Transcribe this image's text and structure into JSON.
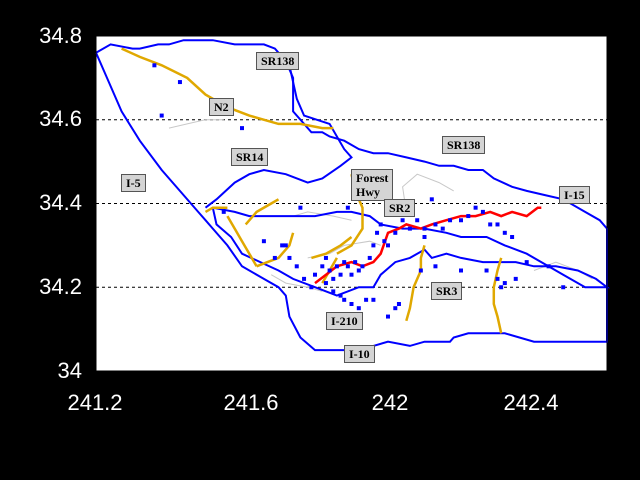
{
  "chart_data": {
    "type": "scatter",
    "xlim": [
      241.2,
      242.6
    ],
    "ylim": [
      34.0,
      34.8
    ],
    "x_ticks": [
      "241.2",
      "241.6",
      "242",
      "242.4"
    ],
    "y_ticks": [
      "34",
      "34.2",
      "34.4",
      "34.6",
      "34.8"
    ],
    "grid": "horizontal dashed at 34.2, 34.4, 34.6",
    "colors": {
      "background": "#ffffff",
      "boundary": "#0000ff",
      "highway_orange": "#e0a800",
      "highway_red": "#ff0000",
      "points": "#0000ff",
      "minor_roads": "#c8c8c8",
      "frame_bg": "#000000"
    },
    "route_labels": [
      {
        "text": "SR138",
        "x": 241.65,
        "y": 34.74
      },
      {
        "text": "N2",
        "x": 241.52,
        "y": 34.63
      },
      {
        "text": "SR138",
        "x": 242.16,
        "y": 34.54
      },
      {
        "text": "SR14",
        "x": 241.58,
        "y": 34.51
      },
      {
        "text": "Forest\nHwy",
        "x": 241.91,
        "y": 34.46
      },
      {
        "text": "I-5",
        "x": 241.28,
        "y": 34.45
      },
      {
        "text": "I-15",
        "x": 242.48,
        "y": 34.42
      },
      {
        "text": "SR2",
        "x": 242.0,
        "y": 34.39
      },
      {
        "text": "SR3",
        "x": 242.13,
        "y": 34.19
      },
      {
        "text": "I-210",
        "x": 241.84,
        "y": 34.12
      },
      {
        "text": "I-10",
        "x": 241.89,
        "y": 34.04
      }
    ],
    "boundary": [
      [
        241.2,
        34.76
      ],
      [
        241.24,
        34.78
      ],
      [
        241.3,
        34.77
      ],
      [
        241.32,
        34.77
      ],
      [
        241.37,
        34.78
      ],
      [
        241.4,
        34.78
      ],
      [
        241.44,
        34.79
      ],
      [
        241.52,
        34.79
      ],
      [
        241.58,
        34.78
      ],
      [
        241.63,
        34.78
      ],
      [
        241.66,
        34.78
      ],
      [
        241.69,
        34.77
      ],
      [
        241.72,
        34.74
      ],
      [
        241.74,
        34.7
      ],
      [
        241.74,
        34.62
      ],
      [
        241.77,
        34.59
      ],
      [
        241.79,
        34.57
      ],
      [
        241.82,
        34.57
      ],
      [
        241.84,
        34.56
      ],
      [
        241.88,
        34.55
      ],
      [
        241.92,
        34.53
      ],
      [
        241.96,
        34.52
      ],
      [
        242.0,
        34.52
      ],
      [
        242.05,
        34.51
      ],
      [
        242.1,
        34.5
      ],
      [
        242.14,
        34.49
      ],
      [
        242.18,
        34.49
      ],
      [
        242.22,
        34.48
      ],
      [
        242.26,
        34.48
      ],
      [
        242.29,
        34.46
      ],
      [
        242.34,
        34.44
      ],
      [
        242.38,
        34.43
      ],
      [
        242.43,
        34.42
      ],
      [
        242.48,
        34.41
      ],
      [
        242.54,
        34.38
      ],
      [
        242.58,
        34.36
      ],
      [
        242.6,
        34.34
      ],
      [
        242.6,
        34.07
      ],
      [
        242.55,
        34.07
      ],
      [
        242.5,
        34.07
      ],
      [
        242.46,
        34.07
      ],
      [
        242.4,
        34.07
      ],
      [
        242.36,
        34.08
      ],
      [
        242.32,
        34.09
      ],
      [
        242.27,
        34.09
      ],
      [
        242.22,
        34.09
      ],
      [
        242.18,
        34.08
      ],
      [
        242.17,
        34.07
      ],
      [
        242.1,
        34.07
      ],
      [
        242.06,
        34.06
      ],
      [
        242.0,
        34.07
      ],
      [
        241.96,
        34.06
      ],
      [
        241.92,
        34.05
      ],
      [
        241.88,
        34.05
      ],
      [
        241.84,
        34.05
      ],
      [
        241.8,
        34.05
      ],
      [
        241.76,
        34.08
      ],
      [
        241.73,
        34.13
      ],
      [
        241.72,
        34.18
      ],
      [
        241.7,
        34.2
      ],
      [
        241.66,
        34.22
      ],
      [
        241.6,
        34.25
      ],
      [
        241.56,
        34.3
      ],
      [
        241.52,
        34.34
      ],
      [
        241.5,
        34.36
      ],
      [
        241.48,
        34.38
      ],
      [
        241.44,
        34.42
      ],
      [
        241.38,
        34.48
      ],
      [
        241.32,
        34.55
      ],
      [
        241.27,
        34.62
      ],
      [
        241.23,
        34.7
      ],
      [
        241.2,
        34.76
      ]
    ],
    "inner_line": [
      [
        241.73,
        34.73
      ],
      [
        241.75,
        34.65
      ],
      [
        241.77,
        34.61
      ],
      [
        241.84,
        34.59
      ],
      [
        241.88,
        34.53
      ],
      [
        241.9,
        34.51
      ],
      [
        241.87,
        34.49
      ],
      [
        241.82,
        34.46
      ],
      [
        241.78,
        34.45
      ],
      [
        241.72,
        34.47
      ],
      [
        241.66,
        34.48
      ],
      [
        241.62,
        34.47
      ],
      [
        241.58,
        34.45
      ],
      [
        241.53,
        34.41
      ],
      [
        241.5,
        34.39
      ]
    ],
    "inner_basin": [
      [
        241.52,
        34.39
      ],
      [
        241.58,
        34.38
      ],
      [
        241.62,
        34.37
      ],
      [
        241.68,
        34.37
      ],
      [
        241.74,
        34.37
      ],
      [
        241.8,
        34.37
      ],
      [
        241.86,
        34.38
      ],
      [
        241.9,
        34.38
      ],
      [
        241.95,
        34.37
      ],
      [
        241.98,
        34.35
      ],
      [
        242.04,
        34.34
      ],
      [
        242.1,
        34.34
      ],
      [
        242.16,
        34.33
      ],
      [
        242.2,
        34.32
      ],
      [
        242.27,
        34.32
      ],
      [
        242.32,
        34.3
      ],
      [
        242.38,
        34.28
      ],
      [
        242.42,
        34.26
      ],
      [
        242.48,
        34.23
      ],
      [
        242.54,
        34.2
      ],
      [
        242.58,
        34.2
      ],
      [
        242.6,
        34.2
      ],
      [
        242.57,
        34.22
      ],
      [
        242.52,
        34.24
      ],
      [
        242.46,
        34.25
      ],
      [
        242.4,
        34.25
      ],
      [
        242.35,
        34.26
      ],
      [
        242.3,
        34.26
      ],
      [
        242.26,
        34.26
      ],
      [
        242.2,
        34.27
      ],
      [
        242.16,
        34.28
      ],
      [
        242.12,
        34.27
      ],
      [
        242.1,
        34.29
      ],
      [
        242.06,
        34.27
      ],
      [
        242.02,
        34.26
      ],
      [
        241.98,
        34.23
      ],
      [
        241.96,
        34.2
      ],
      [
        241.92,
        34.2
      ],
      [
        241.86,
        34.18
      ],
      [
        241.8,
        34.2
      ],
      [
        241.74,
        34.22
      ],
      [
        241.7,
        34.24
      ],
      [
        241.65,
        34.26
      ],
      [
        241.6,
        34.28
      ],
      [
        241.57,
        34.32
      ],
      [
        241.53,
        34.35
      ],
      [
        241.52,
        34.39
      ]
    ],
    "highways_orange": [
      [
        [
          241.27,
          34.77
        ],
        [
          241.32,
          34.75
        ],
        [
          241.38,
          34.73
        ],
        [
          241.45,
          34.7
        ],
        [
          241.5,
          34.66
        ],
        [
          241.56,
          34.63
        ],
        [
          241.62,
          34.61
        ],
        [
          241.7,
          34.59
        ],
        [
          241.76,
          34.59
        ],
        [
          241.82,
          34.58
        ],
        [
          241.85,
          34.58
        ]
      ],
      [
        [
          241.9,
          34.47
        ],
        [
          241.91,
          34.43
        ],
        [
          241.93,
          34.39
        ],
        [
          241.93,
          34.34
        ],
        [
          241.9,
          34.3
        ],
        [
          241.86,
          34.28
        ]
      ],
      [
        [
          241.56,
          34.37
        ],
        [
          241.58,
          34.34
        ],
        [
          241.6,
          34.31
        ],
        [
          241.62,
          34.28
        ],
        [
          241.64,
          34.25
        ]
      ],
      [
        [
          241.61,
          34.35
        ],
        [
          241.64,
          34.38
        ],
        [
          241.68,
          34.4
        ],
        [
          241.7,
          34.41
        ]
      ],
      [
        [
          241.64,
          34.25
        ],
        [
          241.67,
          34.26
        ],
        [
          241.7,
          34.27
        ],
        [
          241.73,
          34.3
        ],
        [
          241.74,
          34.33
        ]
      ],
      [
        [
          241.79,
          34.27
        ],
        [
          241.83,
          34.28
        ],
        [
          241.87,
          34.3
        ],
        [
          241.9,
          34.32
        ]
      ],
      [
        [
          242.1,
          34.3
        ],
        [
          242.09,
          34.27
        ],
        [
          242.09,
          34.24
        ],
        [
          242.07,
          34.2
        ],
        [
          242.06,
          34.15
        ],
        [
          242.05,
          34.12
        ]
      ],
      [
        [
          242.31,
          34.27
        ],
        [
          242.3,
          34.24
        ],
        [
          242.29,
          34.2
        ],
        [
          242.29,
          34.16
        ],
        [
          242.3,
          34.13
        ],
        [
          242.31,
          34.09
        ]
      ],
      [
        [
          241.82,
          34.21
        ],
        [
          241.84,
          34.24
        ],
        [
          241.86,
          34.27
        ]
      ],
      [
        [
          241.5,
          34.38
        ],
        [
          241.52,
          34.39
        ],
        [
          241.54,
          34.39
        ],
        [
          241.56,
          34.39
        ]
      ]
    ],
    "highway_red": [
      [
        241.8,
        34.21
      ],
      [
        241.83,
        34.23
      ],
      [
        241.86,
        34.25
      ],
      [
        241.9,
        34.26
      ],
      [
        241.93,
        34.25
      ],
      [
        241.96,
        34.26
      ],
      [
        241.98,
        34.28
      ],
      [
        242.0,
        34.33
      ],
      [
        242.03,
        34.34
      ],
      [
        242.05,
        34.35
      ],
      [
        242.09,
        34.34
      ],
      [
        242.12,
        34.35
      ],
      [
        242.16,
        34.36
      ],
      [
        242.2,
        34.37
      ],
      [
        242.24,
        34.37
      ],
      [
        242.28,
        34.38
      ],
      [
        242.31,
        34.37
      ],
      [
        242.34,
        34.38
      ],
      [
        242.38,
        34.37
      ],
      [
        242.41,
        34.39
      ],
      [
        242.42,
        34.39
      ]
    ],
    "minor_roads": [
      [
        [
          241.4,
          34.58
        ],
        [
          241.45,
          34.59
        ],
        [
          241.5,
          34.6
        ],
        [
          241.55,
          34.6
        ]
      ],
      [
        [
          241.7,
          34.37
        ],
        [
          241.74,
          34.37
        ],
        [
          241.78,
          34.38
        ],
        [
          241.85,
          34.37
        ],
        [
          241.9,
          34.36
        ]
      ],
      [
        [
          241.78,
          34.27
        ],
        [
          241.84,
          34.28
        ],
        [
          241.88,
          34.3
        ],
        [
          241.95,
          34.31
        ],
        [
          241.98,
          34.3
        ]
      ],
      [
        [
          242.05,
          34.38
        ],
        [
          242.04,
          34.44
        ],
        [
          242.08,
          34.47
        ],
        [
          242.14,
          34.45
        ],
        [
          242.18,
          34.43
        ]
      ],
      [
        [
          242.4,
          34.24
        ],
        [
          242.46,
          34.26
        ],
        [
          242.52,
          34.24
        ],
        [
          242.56,
          34.22
        ]
      ],
      [
        [
          241.68,
          34.23
        ],
        [
          241.72,
          34.21
        ],
        [
          241.78,
          34.2
        ],
        [
          241.82,
          34.19
        ]
      ]
    ],
    "points": [
      [
        241.36,
        34.73
      ],
      [
        241.38,
        34.61
      ],
      [
        241.43,
        34.69
      ],
      [
        241.6,
        34.58
      ],
      [
        241.55,
        34.38
      ],
      [
        241.76,
        34.39
      ],
      [
        241.89,
        34.39
      ],
      [
        241.66,
        34.31
      ],
      [
        241.69,
        34.27
      ],
      [
        241.71,
        34.3
      ],
      [
        241.72,
        34.3
      ],
      [
        241.73,
        34.27
      ],
      [
        241.75,
        34.25
      ],
      [
        241.77,
        34.22
      ],
      [
        241.79,
        34.2
      ],
      [
        241.8,
        34.23
      ],
      [
        241.82,
        34.25
      ],
      [
        241.83,
        34.27
      ],
      [
        241.84,
        34.24
      ],
      [
        241.85,
        34.22
      ],
      [
        241.86,
        34.25
      ],
      [
        241.87,
        34.23
      ],
      [
        241.88,
        34.26
      ],
      [
        241.89,
        34.25
      ],
      [
        241.9,
        34.23
      ],
      [
        241.91,
        34.26
      ],
      [
        241.92,
        34.24
      ],
      [
        241.93,
        34.25
      ],
      [
        241.95,
        34.27
      ],
      [
        241.96,
        34.3
      ],
      [
        241.97,
        34.33
      ],
      [
        241.98,
        34.35
      ],
      [
        241.99,
        34.31
      ],
      [
        242.0,
        34.3
      ],
      [
        242.02,
        34.33
      ],
      [
        242.04,
        34.36
      ],
      [
        242.06,
        34.34
      ],
      [
        242.08,
        34.36
      ],
      [
        242.1,
        34.34
      ],
      [
        242.12,
        34.41
      ],
      [
        242.13,
        34.35
      ],
      [
        242.15,
        34.34
      ],
      [
        242.17,
        34.36
      ],
      [
        242.2,
        34.36
      ],
      [
        242.22,
        34.37
      ],
      [
        242.24,
        34.39
      ],
      [
        242.26,
        34.38
      ],
      [
        242.28,
        34.35
      ],
      [
        242.3,
        34.35
      ],
      [
        242.32,
        34.33
      ],
      [
        242.34,
        34.32
      ],
      [
        242.1,
        34.32
      ],
      [
        242.09,
        34.24
      ],
      [
        242.13,
        34.25
      ],
      [
        242.2,
        34.24
      ],
      [
        242.27,
        34.24
      ],
      [
        242.3,
        34.22
      ],
      [
        242.31,
        34.2
      ],
      [
        242.32,
        34.21
      ],
      [
        242.35,
        34.22
      ],
      [
        242.38,
        34.26
      ],
      [
        242.44,
        34.25
      ],
      [
        242.48,
        34.2
      ],
      [
        241.85,
        34.19
      ],
      [
        241.87,
        34.18
      ],
      [
        241.88,
        34.17
      ],
      [
        241.9,
        34.16
      ],
      [
        241.92,
        34.15
      ],
      [
        241.94,
        34.17
      ],
      [
        241.96,
        34.17
      ],
      [
        242.0,
        34.13
      ],
      [
        242.02,
        34.15
      ],
      [
        242.03,
        34.16
      ],
      [
        241.83,
        34.21
      ]
    ]
  }
}
